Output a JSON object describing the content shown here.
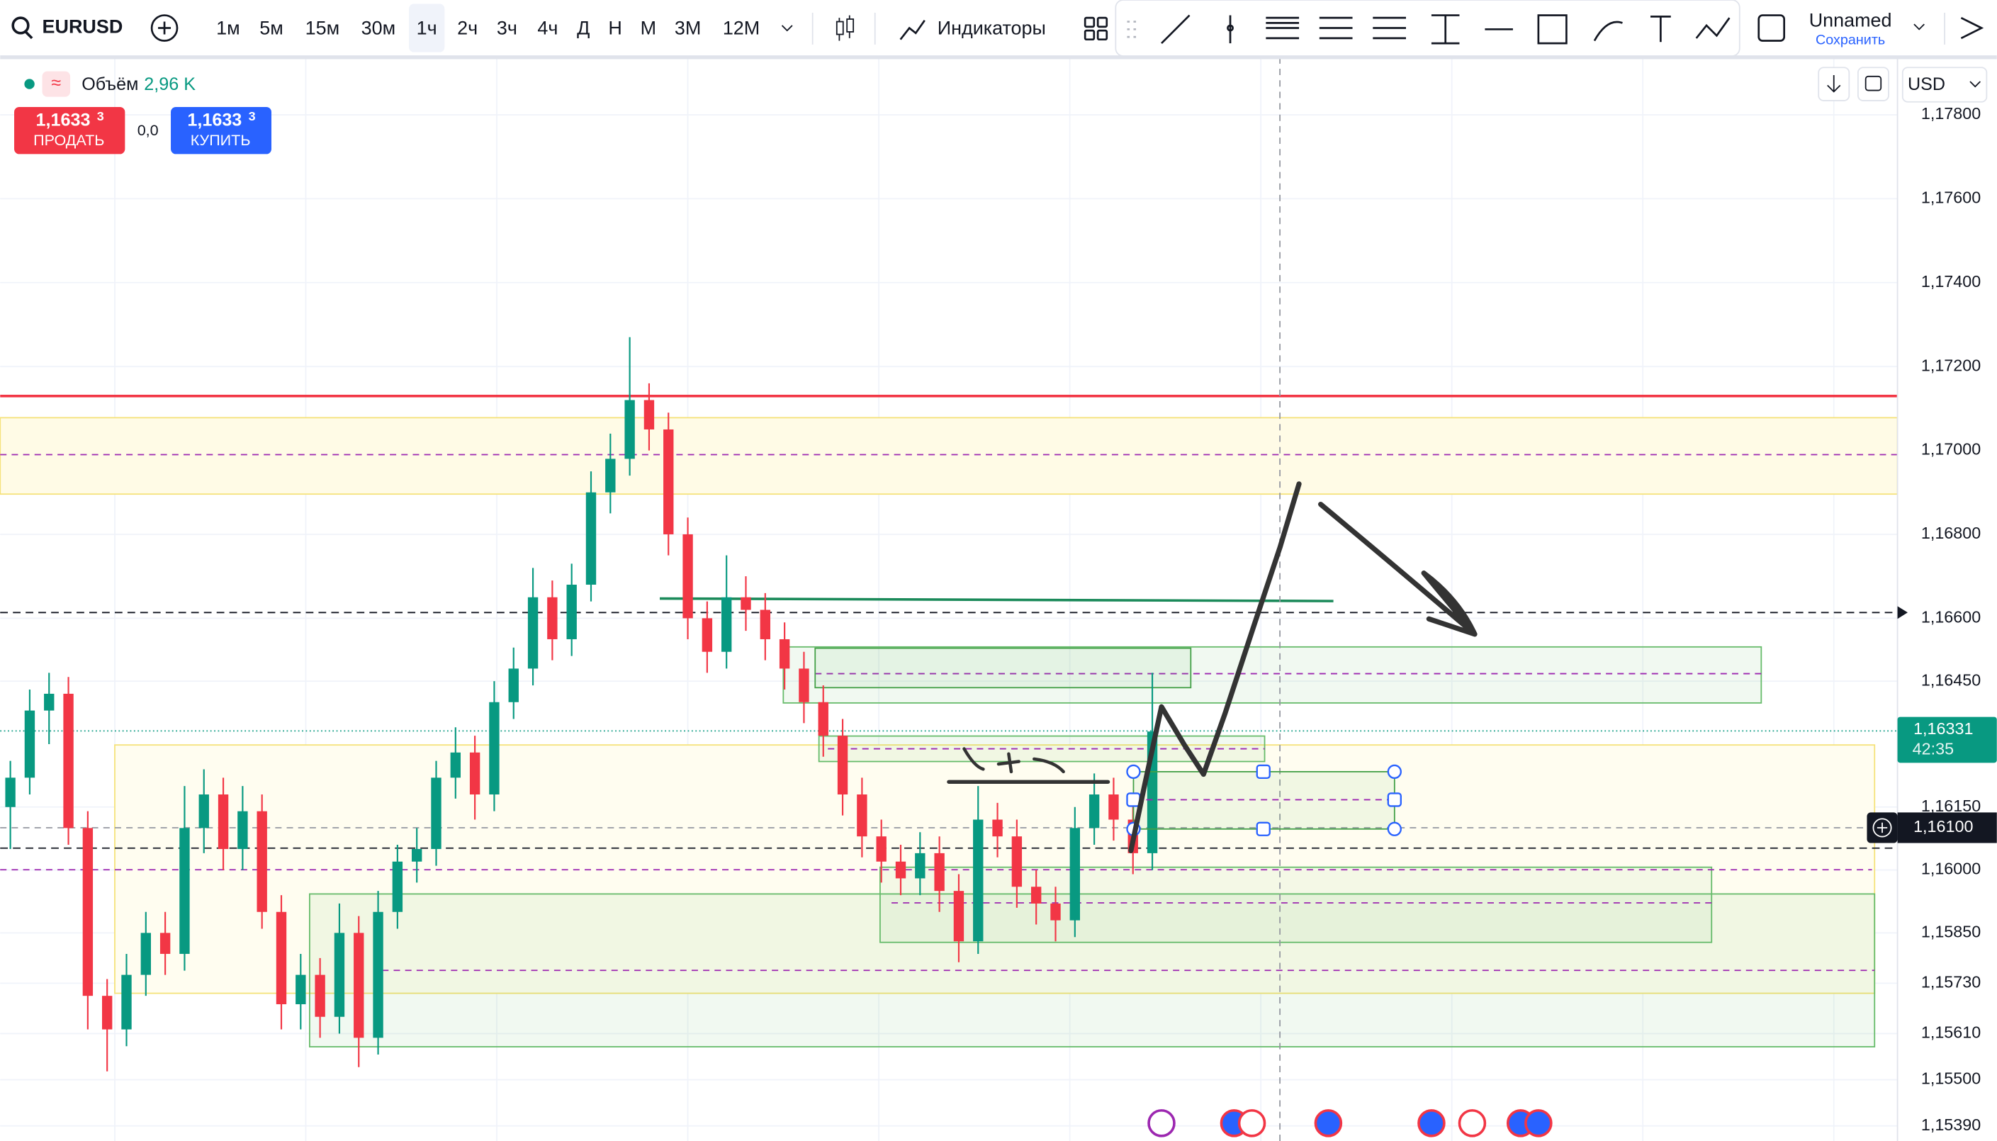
{
  "toolbar": {
    "symbol": "EURUSD",
    "timeframes": [
      "1м",
      "5м",
      "15м",
      "30м",
      "1ч",
      "2ч",
      "3ч",
      "4ч",
      "Д",
      "Н",
      "М",
      "3М",
      "12М"
    ],
    "indicators": "Индикаторы",
    "layout_name": "Unnamed",
    "save": "Сохранить"
  },
  "legend": {
    "volume_label": "Объём",
    "volume_value": "2,96 K",
    "sell_price": "1,1633",
    "sell_price_small": "3",
    "sell": "ПРОДАТЬ",
    "spread": "0,0",
    "buy_price": "1,1633",
    "buy_price_small": "3",
    "buy": "КУПИТЬ",
    "currency": "USD"
  },
  "price_labels": {
    "current": "1,16331",
    "countdown": "42:35",
    "crosshair": "1,16100"
  },
  "chart_data": {
    "type": "candlestick",
    "up_color": "#089981",
    "down_color": "#f23645",
    "grid": true,
    "ylim": [
      1.15354,
      1.17937
    ],
    "yticks": [
      {
        "value": 1.178,
        "label": "1,17800"
      },
      {
        "value": 1.176,
        "label": "1,17600"
      },
      {
        "value": 1.174,
        "label": "1,17400"
      },
      {
        "value": 1.172,
        "label": "1,17200"
      },
      {
        "value": 1.17,
        "label": "1,17000"
      },
      {
        "value": 1.168,
        "label": "1,16800"
      },
      {
        "value": 1.166,
        "label": "1,16600"
      },
      {
        "value": 1.1645,
        "label": "1,16450"
      },
      {
        "value": 1.1615,
        "label": "1,16150"
      },
      {
        "value": 1.16,
        "label": "1,16000"
      },
      {
        "value": 1.1585,
        "label": "1,15850"
      },
      {
        "value": 1.1573,
        "label": "1,15730"
      },
      {
        "value": 1.1561,
        "label": "1,15610"
      },
      {
        "value": 1.155,
        "label": "1,15500"
      },
      {
        "value": 1.1539,
        "label": "1,15390"
      }
    ],
    "candles": [
      [
        1.1615,
        1.1626,
        1.1605,
        1.1622
      ],
      [
        1.1622,
        1.1643,
        1.1618,
        1.1638
      ],
      [
        1.1638,
        1.1647,
        1.163,
        1.1642
      ],
      [
        1.1642,
        1.1646,
        1.1606,
        1.161
      ],
      [
        1.161,
        1.1614,
        1.1562,
        1.157
      ],
      [
        1.157,
        1.1574,
        1.1552,
        1.1562
      ],
      [
        1.1562,
        1.158,
        1.1558,
        1.1575
      ],
      [
        1.1575,
        1.159,
        1.157,
        1.1585
      ],
      [
        1.1585,
        1.159,
        1.1575,
        1.158
      ],
      [
        1.158,
        1.162,
        1.1576,
        1.161
      ],
      [
        1.161,
        1.1624,
        1.1604,
        1.1618
      ],
      [
        1.1618,
        1.1622,
        1.16,
        1.1605
      ],
      [
        1.1605,
        1.162,
        1.16,
        1.1614
      ],
      [
        1.1614,
        1.1618,
        1.1586,
        1.159
      ],
      [
        1.159,
        1.1594,
        1.1562,
        1.1568
      ],
      [
        1.1568,
        1.158,
        1.1562,
        1.1575
      ],
      [
        1.1575,
        1.1579,
        1.156,
        1.1565
      ],
      [
        1.1565,
        1.1592,
        1.1561,
        1.1585
      ],
      [
        1.1585,
        1.1589,
        1.1553,
        1.156
      ],
      [
        1.156,
        1.1595,
        1.1556,
        1.159
      ],
      [
        1.159,
        1.1606,
        1.1586,
        1.1602
      ],
      [
        1.1602,
        1.161,
        1.1597,
        1.1605
      ],
      [
        1.1605,
        1.1626,
        1.1601,
        1.1622
      ],
      [
        1.1622,
        1.1634,
        1.1617,
        1.1628
      ],
      [
        1.1628,
        1.1632,
        1.1612,
        1.1618
      ],
      [
        1.1618,
        1.1645,
        1.1614,
        1.164
      ],
      [
        1.164,
        1.1653,
        1.1636,
        1.1648
      ],
      [
        1.1648,
        1.1672,
        1.1644,
        1.1665
      ],
      [
        1.1665,
        1.1669,
        1.165,
        1.1655
      ],
      [
        1.1655,
        1.1673,
        1.1651,
        1.1668
      ],
      [
        1.1668,
        1.1695,
        1.1664,
        1.169
      ],
      [
        1.169,
        1.1704,
        1.1685,
        1.1698
      ],
      [
        1.1698,
        1.1727,
        1.1694,
        1.1712
      ],
      [
        1.1712,
        1.1716,
        1.17,
        1.1705
      ],
      [
        1.1705,
        1.1709,
        1.1675,
        1.168
      ],
      [
        1.168,
        1.1684,
        1.1655,
        1.166
      ],
      [
        1.166,
        1.1664,
        1.1647,
        1.1652
      ],
      [
        1.1652,
        1.1675,
        1.1648,
        1.1665
      ],
      [
        1.1665,
        1.167,
        1.1657,
        1.1662
      ],
      [
        1.1662,
        1.1666,
        1.165,
        1.1655
      ],
      [
        1.1655,
        1.1659,
        1.1643,
        1.1648
      ],
      [
        1.1648,
        1.1652,
        1.1635,
        1.164
      ],
      [
        1.164,
        1.1644,
        1.1627,
        1.1632
      ],
      [
        1.1632,
        1.1636,
        1.1613,
        1.1618
      ],
      [
        1.1618,
        1.1622,
        1.1603,
        1.1608
      ],
      [
        1.1608,
        1.1612,
        1.1597,
        1.1602
      ],
      [
        1.1602,
        1.1606,
        1.1594,
        1.1598
      ],
      [
        1.1598,
        1.1609,
        1.1594,
        1.1604
      ],
      [
        1.1604,
        1.1608,
        1.159,
        1.1595
      ],
      [
        1.1595,
        1.1599,
        1.1578,
        1.1583
      ],
      [
        1.1583,
        1.162,
        1.158,
        1.1612
      ],
      [
        1.1612,
        1.1616,
        1.1603,
        1.1608
      ],
      [
        1.1608,
        1.1612,
        1.1591,
        1.1596
      ],
      [
        1.1596,
        1.16,
        1.1587,
        1.1592
      ],
      [
        1.1592,
        1.1596,
        1.1583,
        1.1588
      ],
      [
        1.1588,
        1.1615,
        1.1584,
        1.161
      ],
      [
        1.161,
        1.1623,
        1.1606,
        1.1618
      ],
      [
        1.1618,
        1.1622,
        1.1607,
        1.1612
      ],
      [
        1.1612,
        1.1616,
        1.1599,
        1.1604
      ],
      [
        1.1604,
        1.1647,
        1.16,
        1.1633
      ]
    ]
  }
}
